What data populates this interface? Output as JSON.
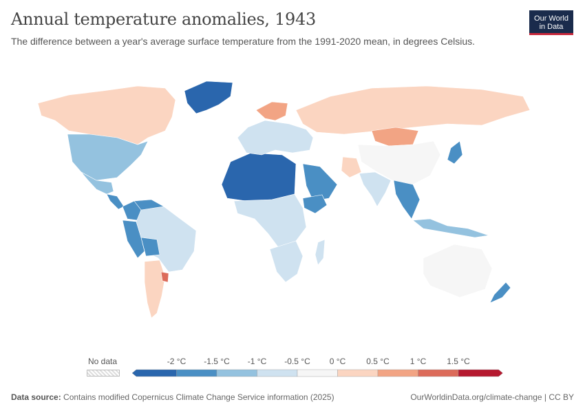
{
  "header": {
    "title": "Annual temperature anomalies, 1943",
    "subtitle": "The difference between a year's average surface temperature from the 1991-2020 mean, in degrees Celsius.",
    "logo_line1": "Our World",
    "logo_line2": "in Data"
  },
  "legend": {
    "no_data_label": "No data",
    "ticks": [
      "-2 °C",
      "-1.5 °C",
      "-1 °C",
      "-0.5 °C",
      "0 °C",
      "0.5 °C",
      "1 °C",
      "1.5 °C"
    ],
    "colors": [
      "#2a66ad",
      "#4a8fc4",
      "#94c2df",
      "#cfe2f0",
      "#f6f6f6",
      "#fbd5c1",
      "#f2a484",
      "#dc6b5a",
      "#b5192f"
    ]
  },
  "chart_data": {
    "type": "choropleth",
    "year": 1943,
    "unit": "°C",
    "regions": [
      {
        "name": "Greenland",
        "anomaly": -2.1
      },
      {
        "name": "Canada",
        "anomaly": 0.0
      },
      {
        "name": "United States",
        "anomaly": -1.1
      },
      {
        "name": "Mexico",
        "anomaly": -1.2
      },
      {
        "name": "Central America",
        "anomaly": -1.7
      },
      {
        "name": "Colombia",
        "anomaly": -1.8
      },
      {
        "name": "Venezuela",
        "anomaly": -1.6
      },
      {
        "name": "Peru",
        "anomaly": -1.8
      },
      {
        "name": "Brazil",
        "anomaly": -1.0
      },
      {
        "name": "Bolivia",
        "anomaly": -1.6
      },
      {
        "name": "Argentina",
        "anomaly": 0.3
      },
      {
        "name": "Uruguay",
        "anomaly": 1.4
      },
      {
        "name": "North Africa",
        "anomaly": -2.1
      },
      {
        "name": "Arabian Peninsula",
        "anomaly": -2.0
      },
      {
        "name": "Ethiopia",
        "anomaly": -1.6
      },
      {
        "name": "Central Africa",
        "anomaly": -0.6
      },
      {
        "name": "Southern Africa",
        "anomaly": -0.7
      },
      {
        "name": "Madagascar",
        "anomaly": -0.9
      },
      {
        "name": "Europe",
        "anomaly": -0.6
      },
      {
        "name": "Scandinavia",
        "anomaly": 0.6
      },
      {
        "name": "Russia",
        "anomaly": 0.0
      },
      {
        "name": "Mongolia",
        "anomaly": 0.8
      },
      {
        "name": "China",
        "anomaly": -0.5
      },
      {
        "name": "Pakistan",
        "anomaly": 0.3
      },
      {
        "name": "India",
        "anomaly": -0.9
      },
      {
        "name": "Southeast Asia",
        "anomaly": -1.7
      },
      {
        "name": "Indonesia",
        "anomaly": -1.5
      },
      {
        "name": "Japan",
        "anomaly": -1.6
      },
      {
        "name": "Australia",
        "anomaly": -0.4
      },
      {
        "name": "New Zealand",
        "anomaly": -1.6
      }
    ]
  },
  "footer": {
    "source_label": "Data source:",
    "source_text": "Contains modified Copernicus Climate Change Service information (2025)",
    "right_text": "OurWorldinData.org/climate-change | CC BY"
  }
}
